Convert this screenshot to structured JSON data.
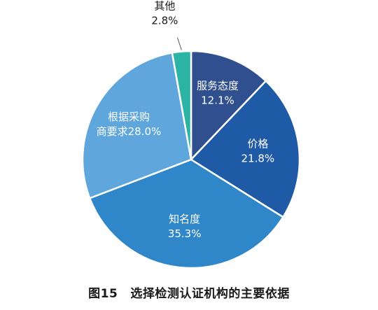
{
  "caption": {
    "figure_number": "图15",
    "title": "选择检测认证机构的主要依据"
  },
  "chart_data": {
    "type": "pie",
    "title": "",
    "start": "top",
    "direction": "clockwise",
    "slices": [
      {
        "name": "服务态度",
        "value": 12.1,
        "value_label": "12.1%",
        "color": "#2f4f8f"
      },
      {
        "name": "价格",
        "value": 21.8,
        "value_label": "21.8%",
        "color": "#1f5aa6"
      },
      {
        "name": "知名度",
        "value": 35.3,
        "value_label": "35.3%",
        "color": "#2f86c8"
      },
      {
        "name": "根据采购商要求",
        "value": 28.0,
        "value_label": "28.0%",
        "color": "#5ea6dc"
      },
      {
        "name": "其他",
        "value": 2.8,
        "value_label": "2.8%",
        "color": "#2bb3a3"
      }
    ]
  }
}
